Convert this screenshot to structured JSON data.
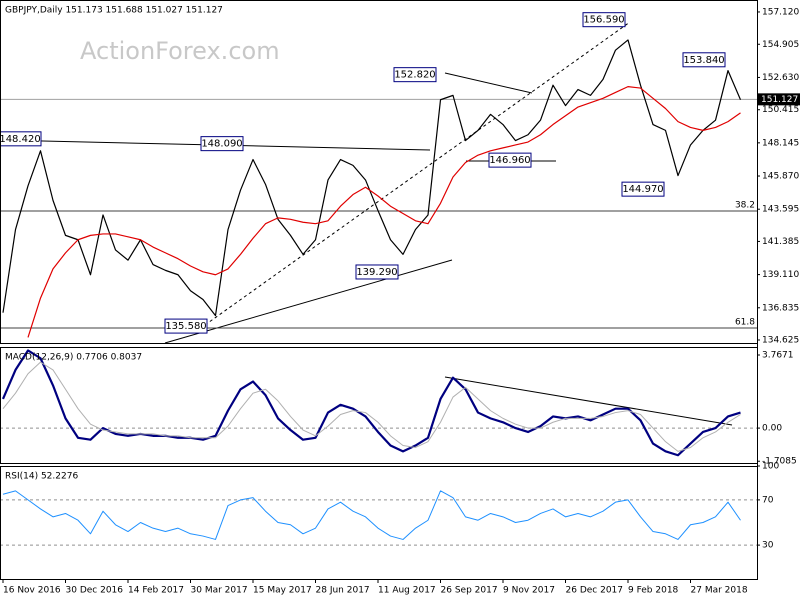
{
  "chart_data": [
    {
      "type": "line",
      "title": "GBPJPY,Daily  151.173 151.688 151.027 151.127",
      "watermark": "ActionForex.com",
      "categories": [
        "16 Nov 2016",
        null,
        null,
        null,
        null,
        "30 Dec 2016",
        null,
        null,
        null,
        null,
        "14 Feb 2017",
        null,
        null,
        null,
        null,
        "30 Mar 2017",
        null,
        null,
        null,
        null,
        "15 May 2017",
        null,
        null,
        null,
        null,
        "28 Jun 2017",
        null,
        null,
        null,
        null,
        "11 Aug 2017",
        null,
        null,
        null,
        null,
        "26 Sep 2017",
        null,
        null,
        null,
        null,
        "9 Nov 2017",
        null,
        null,
        null,
        null,
        "26 Dec 2017",
        null,
        null,
        null,
        null,
        "9 Feb 2018",
        null,
        null,
        null,
        null,
        "27 Mar 2018",
        null,
        null,
        null,
        null
      ],
      "series": [
        {
          "color": "#000000",
          "values": [
            136.5,
            142.2,
            145.2,
            147.6,
            144.2,
            141.8,
            141.5,
            139.1,
            143.2,
            140.8,
            140.1,
            141.5,
            139.8,
            139.4,
            139.1,
            138.0,
            137.4,
            136.3,
            142.2,
            144.9,
            147.0,
            145.3,
            142.9,
            141.8,
            140.5,
            141.5,
            145.6,
            147.0,
            146.6,
            145.6,
            143.5,
            141.5,
            140.5,
            142.2,
            143.2,
            151.1,
            151.4,
            148.3,
            149.0,
            150.1,
            149.4,
            148.3,
            148.7,
            149.7,
            152.1,
            150.7,
            151.8,
            151.4,
            152.5,
            154.5,
            155.2,
            152.1,
            149.4,
            149.0,
            145.9,
            148.0,
            149.0,
            149.7,
            153.1,
            151.1
          ]
        },
        {
          "color": "#e00000",
          "values": [
            null,
            null,
            134.8,
            137.5,
            139.5,
            140.6,
            141.5,
            141.8,
            141.9,
            141.9,
            141.7,
            141.5,
            141.0,
            140.6,
            140.2,
            139.7,
            139.3,
            139.1,
            139.5,
            140.5,
            141.6,
            142.6,
            143.0,
            142.9,
            142.7,
            142.6,
            142.8,
            143.8,
            144.6,
            145.1,
            144.5,
            143.8,
            143.3,
            142.8,
            142.6,
            144.0,
            145.8,
            146.8,
            147.3,
            147.6,
            147.8,
            148.0,
            148.2,
            148.7,
            149.4,
            150.0,
            150.6,
            150.9,
            151.2,
            151.6,
            152.0,
            151.9,
            151.2,
            150.5,
            149.6,
            149.2,
            149.0,
            149.2,
            149.6,
            150.2
          ]
        }
      ],
      "ylim": [
        134.42,
        157.94
      ],
      "yticks": [
        {
          "value": 157.12,
          "label": "157.120"
        },
        {
          "value": 154.905,
          "label": "154.905"
        },
        {
          "value": 152.63,
          "label": "152.630"
        },
        {
          "value": 150.415,
          "label": "150.415"
        },
        {
          "value": 148.145,
          "label": "148.145"
        },
        {
          "value": 145.87,
          "label": "145.870"
        },
        {
          "value": 143.595,
          "label": "143.595"
        },
        {
          "value": 141.385,
          "label": "141.385"
        },
        {
          "value": 139.11,
          "label": "139.110"
        },
        {
          "value": 136.835,
          "label": "136.835"
        },
        {
          "value": 134.625,
          "label": "134.625"
        }
      ],
      "annotations": [
        {
          "value": 148.42,
          "label": "148.420"
        },
        {
          "value": 148.09,
          "label": "148.090"
        },
        {
          "value": 152.82,
          "label": "152.820"
        },
        {
          "value": 156.59,
          "label": "156.590"
        },
        {
          "value": 153.84,
          "label": "153.840"
        },
        {
          "value": 146.96,
          "label": "146.960"
        },
        {
          "value": 144.97,
          "label": "144.970"
        },
        {
          "value": 139.29,
          "label": "139.290"
        },
        {
          "value": 135.58,
          "label": "135.580"
        }
      ],
      "fibonacci": [
        {
          "ratio": 38.2,
          "level": 143.47
        },
        {
          "ratio": 61.8,
          "level": 135.45
        }
      ],
      "last": {
        "value": 151.127,
        "label": "151.127"
      }
    },
    {
      "type": "line",
      "title": "MACD(12,26,9) 0.7706 0.8037",
      "series": [
        {
          "color": "#000080",
          "width": 2.2,
          "values": [
            1.5,
            3.0,
            4.0,
            3.6,
            2.2,
            0.5,
            -0.5,
            -0.6,
            0.0,
            -0.3,
            -0.4,
            -0.3,
            -0.4,
            -0.4,
            -0.5,
            -0.5,
            -0.6,
            -0.4,
            0.9,
            2.0,
            2.4,
            1.7,
            0.5,
            -0.1,
            -0.6,
            -0.5,
            0.8,
            1.2,
            1.0,
            0.6,
            -0.2,
            -0.9,
            -1.2,
            -0.9,
            -0.5,
            1.5,
            2.6,
            2.0,
            0.8,
            0.5,
            0.3,
            0.0,
            -0.2,
            0.1,
            0.6,
            0.5,
            0.6,
            0.4,
            0.7,
            1.0,
            1.0,
            0.4,
            -0.8,
            -1.2,
            -1.4,
            -0.8,
            -0.2,
            0.0,
            0.6,
            0.8
          ]
        },
        {
          "color": "#b0b0b0",
          "width": 1,
          "values": [
            1.0,
            1.8,
            2.8,
            3.4,
            3.0,
            2.0,
            1.0,
            0.2,
            -0.1,
            -0.2,
            -0.3,
            -0.3,
            -0.3,
            -0.4,
            -0.4,
            -0.5,
            -0.5,
            -0.5,
            0.1,
            1.0,
            1.8,
            2.0,
            1.4,
            0.6,
            -0.1,
            -0.4,
            0.1,
            0.7,
            0.9,
            0.8,
            0.3,
            -0.4,
            -0.9,
            -1.0,
            -0.7,
            0.3,
            1.6,
            2.1,
            1.5,
            0.9,
            0.5,
            0.2,
            0.0,
            0.0,
            0.3,
            0.5,
            0.5,
            0.5,
            0.6,
            0.8,
            0.9,
            0.7,
            0.0,
            -0.7,
            -1.2,
            -1.0,
            -0.5,
            -0.2,
            0.3,
            0.7
          ]
        }
      ],
      "ylim": [
        -1.8,
        4.18
      ],
      "yticks": [
        3.7671,
        {
          "value": 0,
          "label": "0.00"
        },
        -1.7085
      ],
      "reference_lines": [
        0
      ]
    },
    {
      "type": "line",
      "title": "RSI(14) 52.2276",
      "series": [
        {
          "color": "#1e90ff",
          "width": 1,
          "values": [
            75,
            78,
            70,
            62,
            55,
            58,
            52,
            40,
            60,
            48,
            42,
            50,
            45,
            42,
            45,
            40,
            38,
            35,
            65,
            70,
            72,
            60,
            50,
            48,
            40,
            45,
            62,
            68,
            60,
            55,
            45,
            38,
            35,
            45,
            52,
            78,
            72,
            55,
            52,
            58,
            55,
            50,
            52,
            58,
            62,
            55,
            58,
            55,
            60,
            68,
            70,
            55,
            42,
            40,
            35,
            48,
            50,
            55,
            68,
            52
          ]
        }
      ],
      "ylim": [
        0,
        100
      ],
      "yticks": [
        100,
        70,
        30
      ],
      "reference_lines": [
        70,
        30
      ]
    }
  ]
}
